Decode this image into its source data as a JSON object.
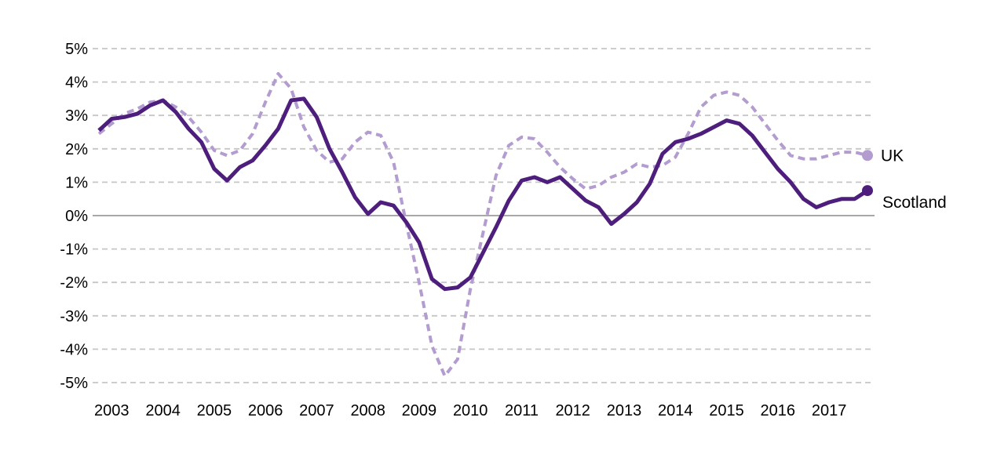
{
  "chart_data": {
    "type": "line",
    "title": "",
    "unit": "%",
    "frequency": "quarterly",
    "x_start": "2002 Q4",
    "x_end": "2017 Q4",
    "x_tick_labels": [
      "2003",
      "2004",
      "2005",
      "2006",
      "2007",
      "2008",
      "2009",
      "2010",
      "2011",
      "2012",
      "2013",
      "2014",
      "2015",
      "2016",
      "2017"
    ],
    "yticks": [
      {
        "label": "5%",
        "value": 5
      },
      {
        "label": "4%",
        "value": 4
      },
      {
        "label": "3%",
        "value": 3
      },
      {
        "label": "2%",
        "value": 2
      },
      {
        "label": "1%",
        "value": 1
      },
      {
        "label": "0%",
        "value": 0
      },
      {
        "label": "-1%",
        "value": -1
      },
      {
        "label": "-2%",
        "value": -2
      },
      {
        "label": "-3%",
        "value": -3
      },
      {
        "label": "-4%",
        "value": -4
      },
      {
        "label": "-5%",
        "value": -5
      }
    ],
    "ylim": [
      -5,
      5
    ],
    "grid": "horizontal dashed gridlines at each 1%, solid grey line at 0%",
    "legend_position": "labels with dots at right end of each line",
    "series": [
      {
        "id": "uk",
        "name": "UK",
        "color": "#b39ccf",
        "line_style": "dashed",
        "dash": "9 6",
        "stroke_width": 4,
        "end_dot": true,
        "label_dx": 17,
        "label_dy": 7,
        "values": [
          2.45,
          2.75,
          3.05,
          3.2,
          3.4,
          3.45,
          3.25,
          2.95,
          2.5,
          1.95,
          1.8,
          1.95,
          2.45,
          3.4,
          4.25,
          3.8,
          2.65,
          1.95,
          1.6,
          1.7,
          2.2,
          2.5,
          2.4,
          1.6,
          -0.25,
          -2.0,
          -3.9,
          -4.8,
          -4.3,
          -2.2,
          -0.5,
          1.2,
          2.1,
          2.35,
          2.3,
          1.9,
          1.45,
          1.1,
          0.8,
          0.9,
          1.15,
          1.3,
          1.55,
          1.45,
          1.5,
          1.75,
          2.45,
          3.25,
          3.6,
          3.7,
          3.6,
          3.25,
          2.75,
          2.25,
          1.8,
          1.7,
          1.7,
          1.8,
          1.9,
          1.9,
          1.8
        ]
      },
      {
        "id": "scotland",
        "name": "Scotland",
        "color": "#4e1e7d",
        "line_style": "solid",
        "dash": null,
        "stroke_width": 5,
        "end_dot": true,
        "label_dx": 19,
        "label_dy": 22,
        "values": [
          2.55,
          2.9,
          2.95,
          3.05,
          3.3,
          3.45,
          3.1,
          2.6,
          2.2,
          1.4,
          1.05,
          1.45,
          1.65,
          2.1,
          2.6,
          3.45,
          3.5,
          2.95,
          2.0,
          1.3,
          0.55,
          0.05,
          0.4,
          0.3,
          -0.2,
          -0.8,
          -1.9,
          -2.2,
          -2.15,
          -1.85,
          -1.1,
          -0.35,
          0.45,
          1.05,
          1.15,
          1.0,
          1.15,
          0.8,
          0.45,
          0.25,
          -0.25,
          0.05,
          0.4,
          0.95,
          1.85,
          2.2,
          2.3,
          2.45,
          2.65,
          2.85,
          2.75,
          2.4,
          1.9,
          1.4,
          1.0,
          0.5,
          0.25,
          0.4,
          0.5,
          0.5,
          0.75
        ]
      }
    ]
  }
}
